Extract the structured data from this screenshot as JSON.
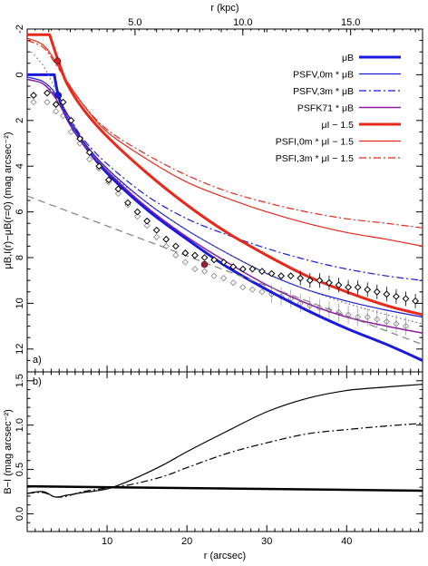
{
  "chart_data": [
    {
      "type": "line",
      "panel_label": "a)",
      "xlabel_top": "r (kpc)",
      "ylabel": "μB,I(r)−μB(r=0) (mag arcsec⁻²)",
      "xlim": [
        0,
        49.5
      ],
      "ylim": [
        13.0,
        -2.0
      ],
      "kpc_per_arcsec": 0.3704,
      "top_ticks": [
        "5.0",
        "10.0",
        "15.0"
      ],
      "top_tick_kpc": [
        5,
        10,
        15
      ],
      "x_ticks": [
        10,
        20,
        30,
        40
      ],
      "y_ticks": [
        -2,
        0,
        2,
        4,
        6,
        8,
        10,
        12
      ],
      "legend": {
        "position": "top-right",
        "entries": [
          {
            "label": "μB",
            "color": "#1a1adf",
            "dash": "solid",
            "width": 3
          },
          {
            "label": "PSFV,0m * μB",
            "color": "#1a1adf",
            "dash": "solid",
            "width": 1.2
          },
          {
            "label": "PSFV,3m * μB",
            "color": "#1a1adf",
            "dash": "dashdot",
            "width": 1.2
          },
          {
            "label": "PSFK71 * μB",
            "color": "#8c1fa0",
            "dash": "solid",
            "width": 1.5
          },
          {
            "label": "μI − 1.5",
            "color": "#e8281a",
            "dash": "solid",
            "width": 3
          },
          {
            "label": "PSFI,0m * μI − 1.5",
            "color": "#e8281a",
            "dash": "solid",
            "width": 1.2
          },
          {
            "label": "PSFI,3m * μI − 1.5",
            "color": "#e8281a",
            "dash": "dashdot",
            "width": 1.2
          }
        ]
      },
      "series": [
        {
          "key": "mu_b",
          "color": "#1a1adf",
          "width": 3,
          "dash": "solid",
          "points": [
            [
              0,
              0
            ],
            [
              3.4,
              0
            ],
            [
              3.9,
              0.9
            ],
            [
              5,
              1.9
            ],
            [
              7,
              3.0
            ],
            [
              10,
              4.3
            ],
            [
              15,
              5.9
            ],
            [
              20,
              7.2
            ],
            [
              25,
              8.4
            ],
            [
              30,
              9.4
            ],
            [
              35,
              10.3
            ],
            [
              40,
              11.1
            ],
            [
              45,
              11.8
            ],
            [
              49.5,
              12.5
            ]
          ]
        },
        {
          "key": "psf_v0m_b",
          "color": "#1a1adf",
          "width": 1.2,
          "dash": "solid",
          "points": [
            [
              0,
              0.1
            ],
            [
              2,
              0.3
            ],
            [
              3.5,
              0.8
            ],
            [
              5,
              1.7
            ],
            [
              7,
              2.9
            ],
            [
              10,
              4.1
            ],
            [
              15,
              5.6
            ],
            [
              20,
              6.8
            ],
            [
              25,
              7.8
            ],
            [
              30,
              8.7
            ],
            [
              35,
              9.4
            ],
            [
              40,
              9.9
            ],
            [
              45,
              10.3
            ],
            [
              49.5,
              10.6
            ]
          ]
        },
        {
          "key": "psf_v3m_b",
          "color": "#1a1adf",
          "width": 1.2,
          "dash": "dashdot",
          "points": [
            [
              0,
              0.2
            ],
            [
              2,
              0.4
            ],
            [
              3.5,
              0.9
            ],
            [
              5,
              1.7
            ],
            [
              7,
              2.8
            ],
            [
              10,
              3.9
            ],
            [
              15,
              5.3
            ],
            [
              20,
              6.3
            ],
            [
              25,
              7.0
            ],
            [
              30,
              7.6
            ],
            [
              35,
              8.1
            ],
            [
              40,
              8.5
            ],
            [
              45,
              8.8
            ],
            [
              49.5,
              9.0
            ]
          ]
        },
        {
          "key": "psf_k71_b",
          "color": "#8c1fa0",
          "width": 1.5,
          "dash": "solid",
          "points": [
            [
              0,
              0.2
            ],
            [
              2,
              0.4
            ],
            [
              3.5,
              1.0
            ],
            [
              5,
              1.9
            ],
            [
              7,
              3.0
            ],
            [
              10,
              4.2
            ],
            [
              15,
              5.8
            ],
            [
              20,
              7.1
            ],
            [
              25,
              8.2
            ],
            [
              30,
              9.2
            ],
            [
              35,
              10.0
            ],
            [
              40,
              10.6
            ],
            [
              45,
              11.0
            ],
            [
              49.5,
              11.3
            ]
          ]
        },
        {
          "key": "mu_i",
          "color": "#e8281a",
          "width": 3,
          "dash": "solid",
          "points": [
            [
              0,
              -1.75
            ],
            [
              2.8,
              -1.75
            ],
            [
              3.9,
              -0.6
            ],
            [
              5,
              0.4
            ],
            [
              7,
              1.5
            ],
            [
              10,
              2.7
            ],
            [
              15,
              4.3
            ],
            [
              20,
              5.7
            ],
            [
              25,
              6.9
            ],
            [
              30,
              7.9
            ],
            [
              35,
              8.8
            ],
            [
              40,
              9.5
            ],
            [
              45,
              10.1
            ],
            [
              49.5,
              10.5
            ]
          ]
        },
        {
          "key": "psf_i0m_i",
          "color": "#e8281a",
          "width": 1.2,
          "dash": "solid",
          "points": [
            [
              0,
              -1.6
            ],
            [
              2,
              -1.3
            ],
            [
              3.5,
              -0.6
            ],
            [
              5,
              0.3
            ],
            [
              7,
              1.3
            ],
            [
              10,
              2.5
            ],
            [
              15,
              3.7
            ],
            [
              20,
              4.7
            ],
            [
              25,
              5.4
            ],
            [
              30,
              6.0
            ],
            [
              35,
              6.5
            ],
            [
              40,
              6.9
            ],
            [
              45,
              7.2
            ],
            [
              49.5,
              7.5
            ]
          ]
        },
        {
          "key": "psf_i3m_i",
          "color": "#e8281a",
          "width": 1.2,
          "dash": "dashdot",
          "points": [
            [
              0,
              -1.5
            ],
            [
              2,
              -1.2
            ],
            [
              3.5,
              -0.5
            ],
            [
              5,
              0.3
            ],
            [
              7,
              1.3
            ],
            [
              10,
              2.4
            ],
            [
              15,
              3.5
            ],
            [
              20,
              4.4
            ],
            [
              25,
              5.1
            ],
            [
              30,
              5.6
            ],
            [
              35,
              6.0
            ],
            [
              40,
              6.3
            ],
            [
              45,
              6.5
            ],
            [
              49.5,
              6.7
            ]
          ]
        },
        {
          "key": "exp_disk",
          "color": "#808080",
          "width": 1.2,
          "dash": "dashed",
          "points": [
            [
              0,
              5.3
            ],
            [
              49.5,
              11.8
            ]
          ]
        },
        {
          "key": "bulge_dotted",
          "color": "#6a6a8a",
          "width": 1.2,
          "dash": "dotted",
          "points": [
            [
              0.5,
              -1.0
            ],
            [
              2,
              -0.4
            ],
            [
              3.5,
              0.6
            ],
            [
              5,
              1.8
            ],
            [
              7,
              3.0
            ],
            [
              10,
              4.2
            ],
            [
              15,
              5.6
            ],
            [
              20,
              6.8
            ],
            [
              25,
              7.8
            ],
            [
              30,
              8.7
            ],
            [
              35,
              9.4
            ],
            [
              40,
              10.0
            ],
            [
              45,
              10.5
            ],
            [
              49.5,
              10.9
            ]
          ]
        }
      ],
      "markers": [
        {
          "x": 3.8,
          "y": -0.6,
          "color": "#d42020"
        },
        {
          "x": 3.9,
          "y": 0.9,
          "color": "#1a1adf"
        },
        {
          "x": 22.2,
          "y": 8.3,
          "color": "#a01c3c"
        }
      ],
      "data_points_black": [
        [
          0.8,
          0.9
        ],
        [
          2.5,
          0.8
        ],
        [
          3.6,
          1.3
        ],
        [
          4.5,
          1.2
        ],
        [
          5.5,
          2.0
        ],
        [
          6.6,
          2.8
        ],
        [
          7.8,
          3.4
        ],
        [
          9.0,
          4.0
        ],
        [
          10.2,
          4.6
        ],
        [
          11.4,
          5.0
        ],
        [
          12.6,
          5.6
        ],
        [
          13.8,
          6.0
        ],
        [
          15.0,
          6.4
        ],
        [
          16.2,
          6.8
        ],
        [
          17.4,
          7.2
        ],
        [
          18.6,
          7.5
        ],
        [
          19.8,
          7.8
        ],
        [
          21.0,
          7.9
        ],
        [
          22.2,
          8.0
        ],
        [
          23.4,
          8.1
        ],
        [
          24.6,
          8.2
        ],
        [
          25.8,
          8.4
        ],
        [
          27.0,
          8.5
        ],
        [
          28.2,
          8.5
        ],
        [
          29.4,
          8.6
        ],
        [
          30.6,
          8.7
        ],
        [
          31.8,
          8.8
        ],
        [
          33.0,
          8.8
        ],
        [
          34.2,
          8.9
        ],
        [
          35.4,
          9.0
        ],
        [
          36.6,
          9.0
        ],
        [
          37.8,
          9.1
        ],
        [
          39.0,
          9.2
        ],
        [
          40.2,
          9.3
        ],
        [
          41.4,
          9.3
        ],
        [
          42.6,
          9.4
        ],
        [
          43.8,
          9.5
        ],
        [
          45.0,
          9.6
        ],
        [
          46.2,
          9.7
        ],
        [
          47.4,
          9.8
        ],
        [
          48.6,
          9.9
        ]
      ],
      "data_points_gray": [
        [
          0.8,
          1.2
        ],
        [
          2.5,
          1.2
        ],
        [
          3.6,
          1.6
        ],
        [
          4.5,
          1.8
        ],
        [
          5.5,
          2.5
        ],
        [
          6.6,
          3.0
        ],
        [
          7.8,
          3.7
        ],
        [
          9.0,
          4.1
        ],
        [
          10.2,
          4.7
        ],
        [
          11.4,
          5.2
        ],
        [
          12.6,
          5.7
        ],
        [
          13.8,
          6.2
        ],
        [
          15.0,
          6.6
        ],
        [
          16.2,
          7.1
        ],
        [
          17.4,
          7.5
        ],
        [
          18.6,
          7.9
        ],
        [
          19.8,
          8.2
        ],
        [
          21.0,
          8.5
        ],
        [
          22.2,
          8.6
        ],
        [
          23.4,
          8.8
        ],
        [
          24.6,
          8.9
        ],
        [
          25.8,
          9.1
        ],
        [
          27.0,
          9.3
        ],
        [
          28.2,
          9.4
        ],
        [
          29.4,
          9.5
        ],
        [
          30.6,
          9.6
        ],
        [
          31.8,
          9.7
        ],
        [
          33.0,
          9.8
        ],
        [
          34.2,
          10.0
        ],
        [
          35.4,
          10.1
        ],
        [
          36.6,
          10.2
        ],
        [
          37.8,
          10.3
        ],
        [
          39.0,
          10.4
        ],
        [
          40.2,
          10.5
        ],
        [
          41.4,
          10.6
        ],
        [
          42.6,
          10.6
        ],
        [
          43.8,
          10.7
        ],
        [
          45.0,
          10.8
        ],
        [
          46.2,
          10.9
        ],
        [
          47.4,
          11.0
        ]
      ]
    },
    {
      "type": "line",
      "panel_label": "b)",
      "xlabel": "r (arcsec)",
      "ylabel": "B−I (mag arcsec⁻²)",
      "xlim": [
        0,
        49.5
      ],
      "ylim": [
        -0.2,
        1.6
      ],
      "x_ticks": [
        10,
        20,
        30,
        40
      ],
      "y_ticks": [
        0.0,
        0.5,
        1.0,
        1.5
      ],
      "series": [
        {
          "key": "bi_thick",
          "color": "#000000",
          "width": 2.5,
          "dash": "solid",
          "points": [
            [
              0,
              0.31
            ],
            [
              49.5,
              0.26
            ]
          ]
        },
        {
          "key": "bi_thin",
          "color": "#000000",
          "width": 1.2,
          "dash": "solid",
          "points": [
            [
              0,
              0.23
            ],
            [
              2,
              0.25
            ],
            [
              3.5,
              0.19
            ],
            [
              5,
              0.21
            ],
            [
              7,
              0.24
            ],
            [
              10,
              0.28
            ],
            [
              13,
              0.38
            ],
            [
              17,
              0.55
            ],
            [
              20,
              0.7
            ],
            [
              25,
              0.93
            ],
            [
              30,
              1.15
            ],
            [
              35,
              1.3
            ],
            [
              40,
              1.39
            ],
            [
              45,
              1.43
            ],
            [
              49.5,
              1.46
            ]
          ]
        },
        {
          "key": "bi_dashdot",
          "color": "#000000",
          "width": 1.2,
          "dash": "dashdot",
          "points": [
            [
              0,
              0.23
            ],
            [
              2,
              0.24
            ],
            [
              3.5,
              0.19
            ],
            [
              5,
              0.2
            ],
            [
              7,
              0.25
            ],
            [
              10,
              0.29
            ],
            [
              13,
              0.33
            ],
            [
              17,
              0.42
            ],
            [
              20,
              0.52
            ],
            [
              25,
              0.68
            ],
            [
              30,
              0.8
            ],
            [
              35,
              0.9
            ],
            [
              40,
              0.95
            ],
            [
              45,
              0.99
            ],
            [
              49.5,
              1.02
            ]
          ]
        }
      ]
    }
  ]
}
